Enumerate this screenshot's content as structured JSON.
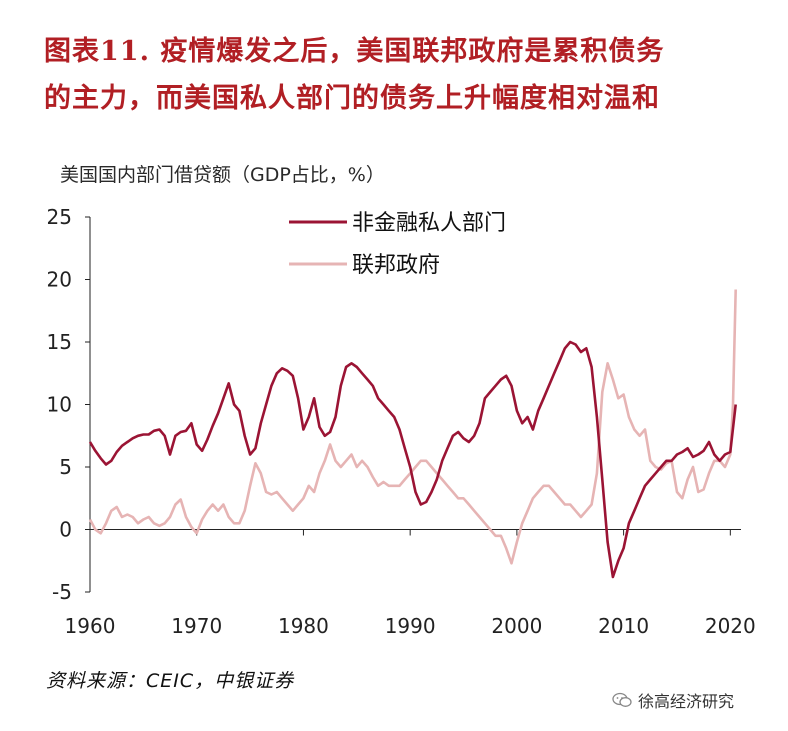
{
  "title_line1": "图表11. 疫情爆发之后，美国联邦政府是累积债务",
  "title_line2": "的主力，而美国私人部门的债务上升幅度相对温和",
  "unit_label": "美国国内部门借贷额（GDP占比，%）",
  "source": "资料来源：CEIC，中银证券",
  "watermark": "徐高经济研究",
  "watermark_icon": "wechat-icon",
  "colors": {
    "title": "#b11f24",
    "private": "#9b1434",
    "federal": "#e6b4b4",
    "axis": "#222222"
  },
  "chart_data": {
    "type": "line",
    "title": "",
    "xlabel": "",
    "ylabel": "",
    "xlim": [
      1960,
      2021
    ],
    "ylim": [
      -5,
      25
    ],
    "xticks": [
      1960,
      1970,
      1980,
      1990,
      2000,
      2010,
      2020
    ],
    "yticks": [
      25,
      20,
      15,
      10,
      5,
      0,
      -5
    ],
    "grid": false,
    "legend": "top-center",
    "series": [
      {
        "name": "非金融私人部门",
        "color": "#9b1434",
        "x": [
          1960.0,
          1960.5,
          1961.0,
          1961.5,
          1962.0,
          1962.5,
          1963.0,
          1963.5,
          1964.0,
          1964.5,
          1965.0,
          1965.5,
          1966.0,
          1966.5,
          1967.0,
          1967.5,
          1968.0,
          1968.5,
          1969.0,
          1969.5,
          1970.0,
          1970.5,
          1971.0,
          1971.5,
          1972.0,
          1972.5,
          1973.0,
          1973.5,
          1974.0,
          1974.5,
          1975.0,
          1975.5,
          1976.0,
          1976.5,
          1977.0,
          1977.5,
          1978.0,
          1978.5,
          1979.0,
          1979.5,
          1980.0,
          1980.5,
          1981.0,
          1981.5,
          1982.0,
          1982.5,
          1983.0,
          1983.5,
          1984.0,
          1984.5,
          1985.0,
          1985.5,
          1986.0,
          1986.5,
          1987.0,
          1987.5,
          1988.0,
          1988.5,
          1989.0,
          1989.5,
          1990.0,
          1990.5,
          1991.0,
          1991.5,
          1992.0,
          1992.5,
          1993.0,
          1993.5,
          1994.0,
          1994.5,
          1995.0,
          1995.5,
          1996.0,
          1996.5,
          1997.0,
          1997.5,
          1998.0,
          1998.5,
          1999.0,
          1999.5,
          2000.0,
          2000.5,
          2001.0,
          2001.5,
          2002.0,
          2002.5,
          2003.0,
          2003.5,
          2004.0,
          2004.5,
          2005.0,
          2005.5,
          2006.0,
          2006.5,
          2007.0,
          2007.5,
          2008.0,
          2008.5,
          2009.0,
          2009.5,
          2010.0,
          2010.5,
          2011.0,
          2011.5,
          2012.0,
          2012.5,
          2013.0,
          2013.5,
          2014.0,
          2014.5,
          2015.0,
          2015.5,
          2016.0,
          2016.5,
          2017.0,
          2017.5,
          2018.0,
          2018.5,
          2019.0,
          2019.5,
          2020.0,
          2020.5
        ],
        "y": [
          7.0,
          6.3,
          5.7,
          5.2,
          5.5,
          6.2,
          6.7,
          7.0,
          7.3,
          7.5,
          7.6,
          7.6,
          7.9,
          8.0,
          7.5,
          6.0,
          7.5,
          7.8,
          7.9,
          8.5,
          6.8,
          6.3,
          7.2,
          8.3,
          9.3,
          10.5,
          11.7,
          10.0,
          9.5,
          7.5,
          6.0,
          6.5,
          8.5,
          10.0,
          11.5,
          12.5,
          12.9,
          12.7,
          12.3,
          10.5,
          8.0,
          9.0,
          10.5,
          8.2,
          7.5,
          7.8,
          9.0,
          11.5,
          13.0,
          13.3,
          13.0,
          12.5,
          12.0,
          11.5,
          10.5,
          10.0,
          9.5,
          9.0,
          8.0,
          6.5,
          5.0,
          3.0,
          2.0,
          2.2,
          3.0,
          4.0,
          5.5,
          6.5,
          7.5,
          7.8,
          7.3,
          7.0,
          7.5,
          8.5,
          10.5,
          11.0,
          11.5,
          12.0,
          12.3,
          11.5,
          9.5,
          8.5,
          9.0,
          8.0,
          9.5,
          10.5,
          11.5,
          12.5,
          13.5,
          14.5,
          15.0,
          14.8,
          14.2,
          14.5,
          13.0,
          9.0,
          4.0,
          -1.0,
          -3.8,
          -2.5,
          -1.5,
          0.5,
          1.5,
          2.5,
          3.5,
          4.0,
          4.5,
          5.0,
          5.5,
          5.5,
          6.0,
          6.2,
          6.5,
          5.8,
          6.0,
          6.3,
          7.0,
          6.0,
          5.5,
          6.0,
          6.2,
          10.0
        ]
      },
      {
        "name": "联邦政府",
        "color": "#e6b4b4",
        "x": [
          1960.0,
          1960.5,
          1961.0,
          1961.5,
          1962.0,
          1962.5,
          1963.0,
          1963.5,
          1964.0,
          1964.5,
          1965.0,
          1965.5,
          1966.0,
          1966.5,
          1967.0,
          1967.5,
          1968.0,
          1968.5,
          1969.0,
          1969.5,
          1970.0,
          1970.5,
          1971.0,
          1971.5,
          1972.0,
          1972.5,
          1973.0,
          1973.5,
          1974.0,
          1974.5,
          1975.0,
          1975.5,
          1976.0,
          1976.5,
          1977.0,
          1977.5,
          1978.0,
          1978.5,
          1979.0,
          1979.5,
          1980.0,
          1980.5,
          1981.0,
          1981.5,
          1982.0,
          1982.5,
          1983.0,
          1983.5,
          1984.0,
          1984.5,
          1985.0,
          1985.5,
          1986.0,
          1986.5,
          1987.0,
          1987.5,
          1988.0,
          1988.5,
          1989.0,
          1989.5,
          1990.0,
          1990.5,
          1991.0,
          1991.5,
          1992.0,
          1992.5,
          1993.0,
          1993.5,
          1994.0,
          1994.5,
          1995.0,
          1995.5,
          1996.0,
          1996.5,
          1997.0,
          1997.5,
          1998.0,
          1998.5,
          1999.0,
          1999.5,
          2000.0,
          2000.5,
          2001.0,
          2001.5,
          2002.0,
          2002.5,
          2003.0,
          2003.5,
          2004.0,
          2004.5,
          2005.0,
          2005.5,
          2006.0,
          2006.5,
          2007.0,
          2007.5,
          2008.0,
          2008.5,
          2009.0,
          2009.5,
          2010.0,
          2010.5,
          2011.0,
          2011.5,
          2012.0,
          2012.5,
          2013.0,
          2013.5,
          2014.0,
          2014.5,
          2015.0,
          2015.5,
          2016.0,
          2016.5,
          2017.0,
          2017.5,
          2018.0,
          2018.5,
          2019.0,
          2019.5,
          2020.0,
          2020.25,
          2020.5
        ],
        "y": [
          0.8,
          0.0,
          -0.3,
          0.5,
          1.5,
          1.8,
          1.0,
          1.2,
          1.0,
          0.5,
          0.8,
          1.0,
          0.5,
          0.3,
          0.5,
          1.0,
          2.0,
          2.4,
          1.0,
          0.2,
          -0.3,
          0.8,
          1.5,
          2.0,
          1.5,
          2.0,
          1.0,
          0.5,
          0.5,
          1.5,
          3.5,
          5.3,
          4.5,
          3.0,
          2.8,
          3.0,
          2.5,
          2.0,
          1.5,
          2.0,
          2.5,
          3.5,
          3.0,
          4.5,
          5.5,
          6.8,
          5.5,
          5.0,
          5.5,
          6.0,
          5.0,
          5.5,
          5.0,
          4.2,
          3.5,
          3.8,
          3.5,
          3.5,
          3.5,
          4.0,
          4.5,
          5.0,
          5.5,
          5.5,
          5.0,
          4.5,
          4.0,
          3.5,
          3.0,
          2.5,
          2.5,
          2.0,
          1.5,
          1.0,
          0.5,
          0.0,
          -0.5,
          -0.5,
          -1.5,
          -2.7,
          -1.0,
          0.5,
          1.5,
          2.5,
          3.0,
          3.5,
          3.5,
          3.0,
          2.5,
          2.0,
          2.0,
          1.5,
          1.0,
          1.5,
          2.0,
          4.5,
          11.0,
          13.3,
          12.0,
          10.5,
          10.8,
          9.0,
          8.0,
          7.5,
          8.0,
          5.5,
          5.0,
          4.8,
          5.3,
          5.5,
          3.0,
          2.5,
          4.0,
          5.0,
          3.0,
          3.2,
          4.5,
          5.5,
          5.5,
          5.0,
          6.0,
          10.0,
          19.2
        ]
      }
    ]
  }
}
